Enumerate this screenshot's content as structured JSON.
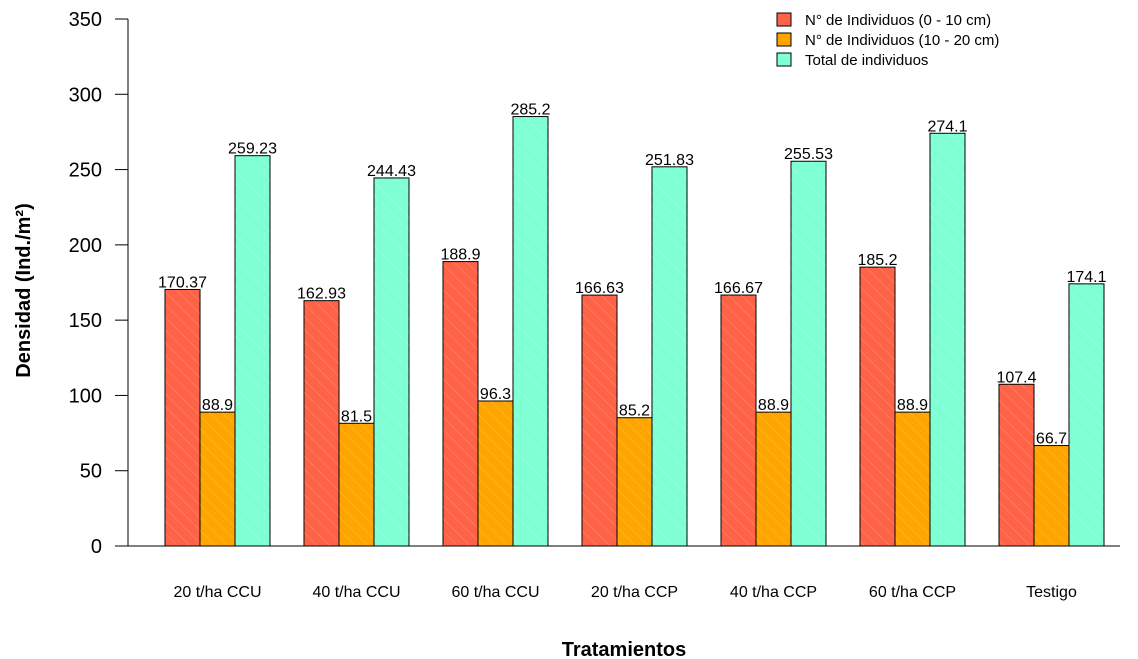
{
  "chart_data": {
    "type": "bar",
    "title": "",
    "xlabel": "Tratamientos",
    "ylabel": "Densidad (Ind./m²)",
    "ylim": [
      0,
      350
    ],
    "yticks": [
      0,
      50,
      100,
      150,
      200,
      250,
      300,
      350
    ],
    "categories": [
      "20 t/ha CCU",
      "40 t/ha CCU",
      "60 t/ha CCU",
      "20 t/ha CCP",
      "40 t/ha CCP",
      "60 t/ha CCP",
      "Testigo"
    ],
    "series": [
      {
        "name": "N° de Individuos (0 - 10 cm)",
        "color": "#FF6347",
        "values": [
          170.37,
          162.93,
          188.9,
          166.63,
          166.67,
          185.2,
          107.4
        ],
        "labels": [
          "170.37",
          "162.93",
          "188.9",
          "166.63",
          "166.67",
          "185.2",
          "107.4"
        ]
      },
      {
        "name": "N° de Individuos (10 - 20 cm)",
        "color": "#FFA500",
        "values": [
          88.9,
          81.5,
          96.3,
          85.2,
          88.9,
          88.9,
          66.7
        ],
        "labels": [
          "88.9",
          "81.5",
          "96.3",
          "85.2",
          "88.9",
          "88.9",
          "66.7"
        ]
      },
      {
        "name": "Total de individuos",
        "color": "#7FFFD4",
        "values": [
          259.23,
          244.43,
          285.2,
          251.83,
          255.53,
          274.1,
          174.1
        ],
        "labels": [
          "259.23",
          "244.43",
          "285.2",
          "251.83",
          "255.53",
          "274.1",
          "174.1"
        ]
      }
    ],
    "legend": "top-right",
    "grid": false
  }
}
